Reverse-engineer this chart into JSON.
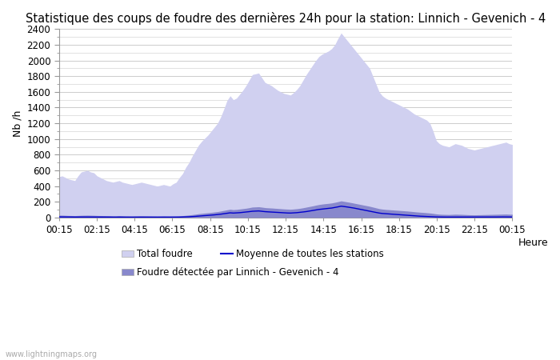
{
  "title": "Statistique des coups de foudre des dernières 24h pour la station: Linnich - Gevenich - 4",
  "xlabel": "Heure",
  "ylabel": "Nb /h",
  "ylim": [
    0,
    2400
  ],
  "yticks": [
    0,
    200,
    400,
    600,
    800,
    1000,
    1200,
    1400,
    1600,
    1800,
    2000,
    2200,
    2400
  ],
  "x_ticks_labels": [
    "00:15",
    "02:15",
    "04:15",
    "06:15",
    "08:15",
    "10:15",
    "12:15",
    "14:15",
    "16:15",
    "18:15",
    "20:15",
    "22:15",
    "00:15"
  ],
  "color_total": "#d0d0f0",
  "color_detectee": "#8888cc",
  "color_moyenne": "#0000cc",
  "background_color": "#ffffff",
  "grid_color": "#cccccc",
  "legend_total": "Total foudre",
  "legend_detectee": "Foudre détectée par Linnich - Gevenich - 4",
  "legend_moyenne": "Moyenne de toutes les stations",
  "watermark": "www.lightningmaps.org",
  "title_fontsize": 10.5,
  "axis_fontsize": 9,
  "tick_fontsize": 8.5,
  "total_foudre": [
    520,
    530,
    510,
    490,
    480,
    470,
    530,
    580,
    590,
    600,
    580,
    570,
    530,
    510,
    490,
    470,
    460,
    450,
    460,
    470,
    450,
    440,
    430,
    420,
    430,
    440,
    450,
    440,
    430,
    420,
    410,
    400,
    410,
    420,
    410,
    400,
    430,
    450,
    510,
    560,
    640,
    700,
    780,
    850,
    920,
    970,
    1010,
    1050,
    1100,
    1150,
    1200,
    1280,
    1380,
    1490,
    1550,
    1500,
    1520,
    1570,
    1620,
    1680,
    1750,
    1820,
    1830,
    1840,
    1780,
    1720,
    1700,
    1680,
    1650,
    1620,
    1600,
    1580,
    1570,
    1560,
    1590,
    1630,
    1680,
    1750,
    1820,
    1880,
    1940,
    2000,
    2050,
    2080,
    2100,
    2120,
    2150,
    2200,
    2280,
    2350,
    2300,
    2250,
    2200,
    2150,
    2100,
    2050,
    2000,
    1950,
    1900,
    1800,
    1700,
    1600,
    1550,
    1520,
    1500,
    1480,
    1460,
    1440,
    1420,
    1400,
    1380,
    1350,
    1320,
    1300,
    1280,
    1260,
    1240,
    1200,
    1100,
    980,
    940,
    920,
    910,
    900,
    920,
    940,
    930,
    920,
    900,
    880,
    870,
    860,
    870,
    880,
    890,
    900,
    910,
    920,
    930,
    940,
    950,
    960,
    940,
    930
  ],
  "foudre_detectee": [
    30,
    30,
    28,
    26,
    25,
    24,
    26,
    28,
    29,
    30,
    29,
    28,
    26,
    25,
    24,
    23,
    22,
    21,
    22,
    23,
    22,
    21,
    20,
    19,
    20,
    21,
    22,
    21,
    20,
    19,
    18,
    17,
    18,
    19,
    18,
    17,
    18,
    19,
    21,
    24,
    28,
    32,
    37,
    42,
    48,
    53,
    57,
    61,
    65,
    70,
    75,
    82,
    90,
    98,
    105,
    100,
    103,
    108,
    113,
    118,
    125,
    133,
    135,
    137,
    132,
    126,
    123,
    121,
    118,
    115,
    112,
    109,
    107,
    105,
    108,
    112,
    117,
    124,
    132,
    140,
    148,
    157,
    165,
    171,
    176,
    180,
    185,
    193,
    202,
    212,
    205,
    198,
    191,
    183,
    175,
    167,
    159,
    151,
    143,
    133,
    123,
    113,
    107,
    103,
    100,
    97,
    94,
    91,
    88,
    85,
    82,
    78,
    74,
    70,
    67,
    64,
    61,
    57,
    52,
    46,
    42,
    40,
    39,
    38,
    40,
    42,
    41,
    40,
    38,
    36,
    35,
    34,
    35,
    36,
    37,
    38,
    39,
    40,
    41,
    42,
    43,
    44,
    42,
    41
  ],
  "moyenne_stations": [
    8,
    8,
    7,
    7,
    7,
    6,
    7,
    7,
    7,
    8,
    7,
    7,
    7,
    6,
    6,
    6,
    6,
    5,
    5,
    6,
    5,
    5,
    5,
    5,
    5,
    5,
    5,
    5,
    5,
    5,
    4,
    4,
    4,
    5,
    4,
    4,
    5,
    5,
    6,
    7,
    8,
    10,
    12,
    15,
    18,
    21,
    24,
    27,
    30,
    34,
    38,
    43,
    49,
    55,
    60,
    57,
    59,
    62,
    66,
    70,
    75,
    80,
    82,
    84,
    79,
    75,
    72,
    70,
    68,
    65,
    63,
    60,
    58,
    57,
    59,
    62,
    66,
    71,
    76,
    83,
    89,
    96,
    103,
    108,
    113,
    117,
    121,
    128,
    136,
    145,
    140,
    134,
    128,
    121,
    113,
    105,
    97,
    89,
    81,
    73,
    65,
    57,
    52,
    49,
    46,
    43,
    40,
    37,
    34,
    31,
    28,
    25,
    22,
    19,
    17,
    15,
    13,
    11,
    9,
    8,
    7,
    7,
    6,
    6,
    7,
    7,
    7,
    7,
    6,
    6,
    6,
    5,
    6,
    6,
    6,
    7,
    7,
    7,
    7,
    8,
    8,
    8,
    7,
    7
  ]
}
